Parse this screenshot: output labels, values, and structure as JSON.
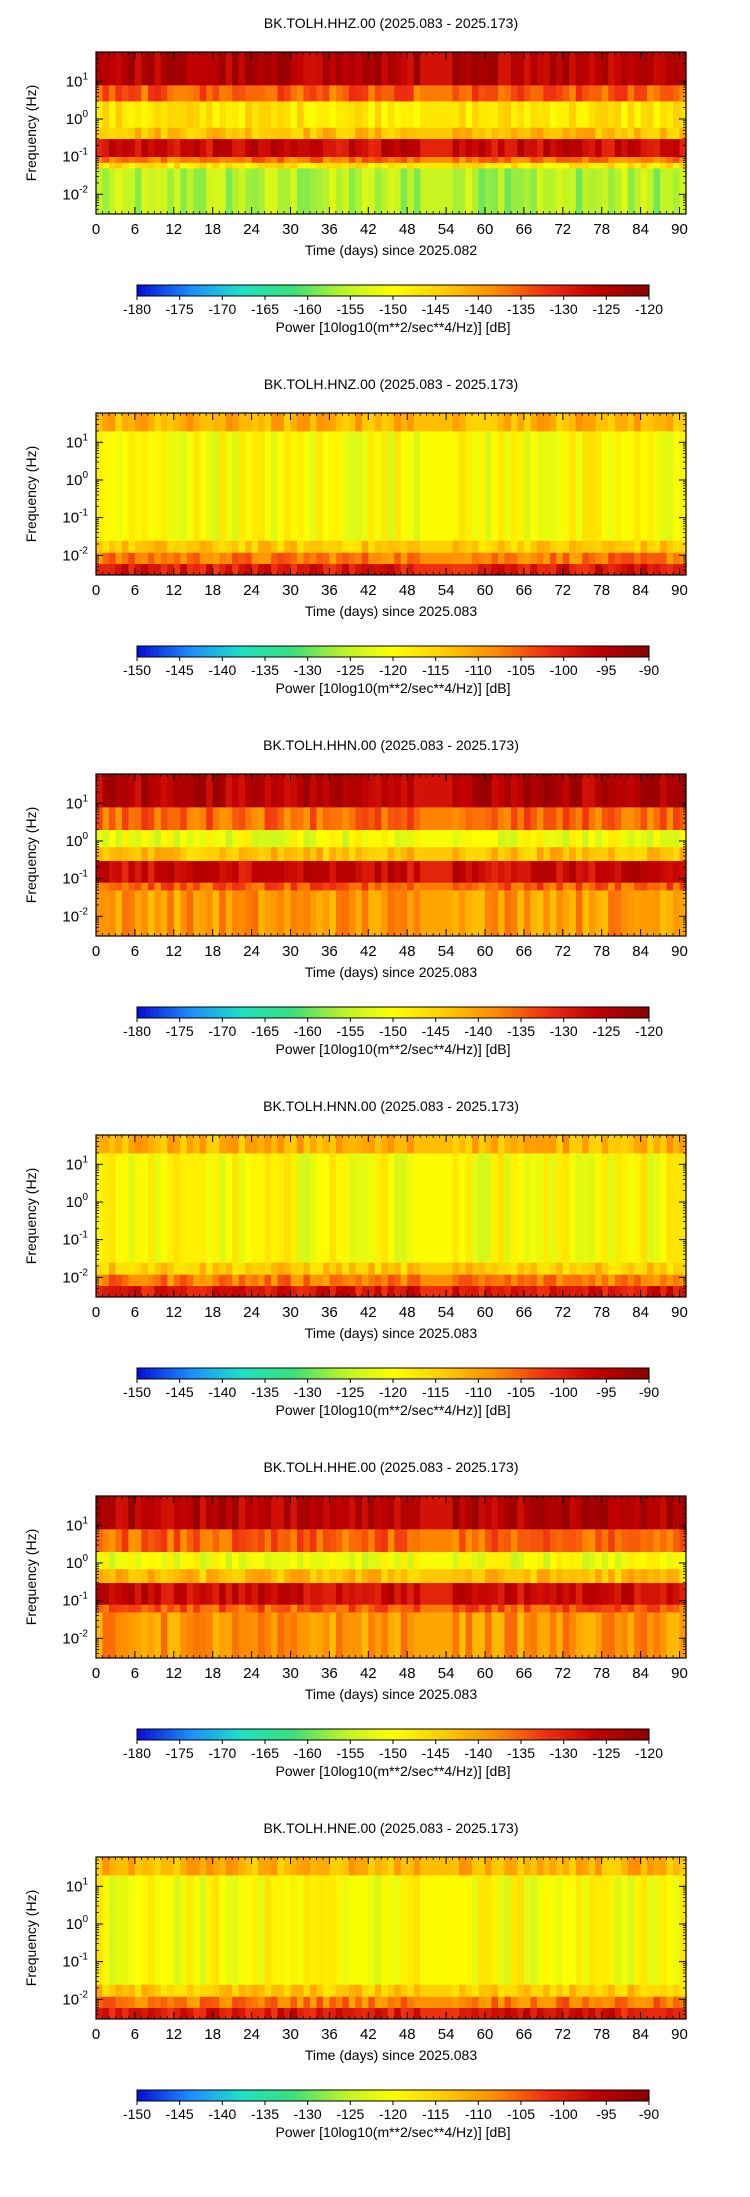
{
  "axis_common": {
    "xlabel": "Time (days) since",
    "ylabel": "Frequency (Hz)",
    "x_ticks": [
      "0",
      "6",
      "12",
      "18",
      "24",
      "30",
      "36",
      "42",
      "48",
      "54",
      "60",
      "66",
      "72",
      "78",
      "84",
      "90"
    ],
    "y_ticks": [
      {
        "base": "10",
        "exp": "1"
      },
      {
        "base": "10",
        "exp": "0"
      },
      {
        "base": "10",
        "exp": "-1"
      },
      {
        "base": "10",
        "exp": "-2"
      }
    ],
    "colorbar_label": "Power [10log10(m**2/sec**4/Hz)] [dB]"
  },
  "colormap": [
    "#0a10d8",
    "#1a8cff",
    "#1de0c8",
    "#37e07a",
    "#b8f22a",
    "#ffff00",
    "#ffcc00",
    "#ff8c00",
    "#f03010",
    "#c00000",
    "#8b0000"
  ],
  "chart_data": [
    {
      "type": "heatmap",
      "title": "BK.TOLH.HHZ.00 (2025.083 - 2025.173)",
      "xlabel_date": "2025.082",
      "xlim": [
        0,
        91
      ],
      "ylim_hz": [
        0.003,
        60
      ],
      "y_scale": "log",
      "colorbar": {
        "ticks": [
          "-180",
          "-175",
          "-170",
          "-165",
          "-160",
          "-155",
          "-150",
          "-145",
          "-140",
          "-135",
          "-130",
          "-125",
          "-120"
        ],
        "range": [
          -180,
          -120
        ]
      },
      "bands": [
        {
          "from_hz": 0.003,
          "to_hz": 0.05,
          "level": 0.4
        },
        {
          "from_hz": 0.05,
          "to_hz": 0.07,
          "level": 0.55
        },
        {
          "from_hz": 0.07,
          "to_hz": 0.1,
          "level": 0.72
        },
        {
          "from_hz": 0.1,
          "to_hz": 0.3,
          "level": 0.88
        },
        {
          "from_hz": 0.3,
          "to_hz": 0.6,
          "level": 0.62
        },
        {
          "from_hz": 0.6,
          "to_hz": 3,
          "level": 0.55
        },
        {
          "from_hz": 3,
          "to_hz": 8,
          "level": 0.75
        },
        {
          "from_hz": 8,
          "to_hz": 60,
          "level": 0.92
        }
      ],
      "quiet_days": [
        50,
        55
      ]
    },
    {
      "type": "heatmap",
      "title": "BK.TOLH.HNZ.00 (2025.083 - 2025.173)",
      "xlabel_date": "2025.083",
      "xlim": [
        0,
        91
      ],
      "ylim_hz": [
        0.003,
        60
      ],
      "y_scale": "log",
      "colorbar": {
        "ticks": [
          "-150",
          "-145",
          "-140",
          "-135",
          "-130",
          "-125",
          "-120",
          "-115",
          "-110",
          "-105",
          "-100",
          "-95",
          "-90"
        ],
        "range": [
          -150,
          -90
        ]
      },
      "bands": [
        {
          "from_hz": 0.003,
          "to_hz": 0.006,
          "level": 0.85
        },
        {
          "from_hz": 0.006,
          "to_hz": 0.012,
          "level": 0.72
        },
        {
          "from_hz": 0.012,
          "to_hz": 0.025,
          "level": 0.6
        },
        {
          "from_hz": 0.025,
          "to_hz": 20,
          "level": 0.5
        },
        {
          "from_hz": 20,
          "to_hz": 60,
          "level": 0.64
        }
      ],
      "quiet_days": [
        50,
        55
      ]
    },
    {
      "type": "heatmap",
      "title": "BK.TOLH.HHN.00 (2025.083 - 2025.173)",
      "xlabel_date": "2025.083",
      "xlim": [
        0,
        91
      ],
      "ylim_hz": [
        0.003,
        60
      ],
      "y_scale": "log",
      "colorbar": {
        "ticks": [
          "-180",
          "-175",
          "-170",
          "-165",
          "-160",
          "-155",
          "-150",
          "-145",
          "-140",
          "-135",
          "-130",
          "-125",
          "-120"
        ],
        "range": [
          -180,
          -120
        ]
      },
      "bands": [
        {
          "from_hz": 0.003,
          "to_hz": 0.05,
          "level": 0.68
        },
        {
          "from_hz": 0.05,
          "to_hz": 0.08,
          "level": 0.75
        },
        {
          "from_hz": 0.08,
          "to_hz": 0.3,
          "level": 0.88
        },
        {
          "from_hz": 0.3,
          "to_hz": 0.7,
          "level": 0.62
        },
        {
          "from_hz": 0.7,
          "to_hz": 2,
          "level": 0.48
        },
        {
          "from_hz": 2,
          "to_hz": 8,
          "level": 0.74
        },
        {
          "from_hz": 8,
          "to_hz": 60,
          "level": 0.92
        }
      ],
      "quiet_days": [
        50,
        55
      ]
    },
    {
      "type": "heatmap",
      "title": "BK.TOLH.HNN.00 (2025.083 - 2025.173)",
      "xlabel_date": "2025.083",
      "xlim": [
        0,
        91
      ],
      "ylim_hz": [
        0.003,
        60
      ],
      "y_scale": "log",
      "colorbar": {
        "ticks": [
          "-150",
          "-145",
          "-140",
          "-135",
          "-130",
          "-125",
          "-120",
          "-115",
          "-110",
          "-105",
          "-100",
          "-95",
          "-90"
        ],
        "range": [
          -150,
          -90
        ]
      },
      "bands": [
        {
          "from_hz": 0.003,
          "to_hz": 0.006,
          "level": 0.85
        },
        {
          "from_hz": 0.006,
          "to_hz": 0.012,
          "level": 0.72
        },
        {
          "from_hz": 0.012,
          "to_hz": 0.025,
          "level": 0.6
        },
        {
          "from_hz": 0.025,
          "to_hz": 20,
          "level": 0.5
        },
        {
          "from_hz": 20,
          "to_hz": 60,
          "level": 0.64
        }
      ],
      "quiet_days": [
        50,
        55
      ]
    },
    {
      "type": "heatmap",
      "title": "BK.TOLH.HHE.00 (2025.083 - 2025.173)",
      "xlabel_date": "2025.083",
      "xlim": [
        0,
        91
      ],
      "ylim_hz": [
        0.003,
        60
      ],
      "y_scale": "log",
      "colorbar": {
        "ticks": [
          "-180",
          "-175",
          "-170",
          "-165",
          "-160",
          "-155",
          "-150",
          "-145",
          "-140",
          "-135",
          "-130",
          "-125",
          "-120"
        ],
        "range": [
          -180,
          -120
        ]
      },
      "bands": [
        {
          "from_hz": 0.003,
          "to_hz": 0.05,
          "level": 0.68
        },
        {
          "from_hz": 0.05,
          "to_hz": 0.08,
          "level": 0.75
        },
        {
          "from_hz": 0.08,
          "to_hz": 0.3,
          "level": 0.88
        },
        {
          "from_hz": 0.3,
          "to_hz": 0.7,
          "level": 0.62
        },
        {
          "from_hz": 0.7,
          "to_hz": 2,
          "level": 0.48
        },
        {
          "from_hz": 2,
          "to_hz": 8,
          "level": 0.74
        },
        {
          "from_hz": 8,
          "to_hz": 60,
          "level": 0.92
        }
      ],
      "quiet_days": [
        50,
        55
      ]
    },
    {
      "type": "heatmap",
      "title": "BK.TOLH.HNE.00 (2025.083 - 2025.173)",
      "xlabel_date": "2025.083",
      "xlim": [
        0,
        91
      ],
      "ylim_hz": [
        0.003,
        60
      ],
      "y_scale": "log",
      "colorbar": {
        "ticks": [
          "-150",
          "-145",
          "-140",
          "-135",
          "-130",
          "-125",
          "-120",
          "-115",
          "-110",
          "-105",
          "-100",
          "-95",
          "-90"
        ],
        "range": [
          -150,
          -90
        ]
      },
      "bands": [
        {
          "from_hz": 0.003,
          "to_hz": 0.006,
          "level": 0.85
        },
        {
          "from_hz": 0.006,
          "to_hz": 0.012,
          "level": 0.72
        },
        {
          "from_hz": 0.012,
          "to_hz": 0.025,
          "level": 0.6
        },
        {
          "from_hz": 0.025,
          "to_hz": 20,
          "level": 0.5
        },
        {
          "from_hz": 20,
          "to_hz": 60,
          "level": 0.64
        }
      ],
      "quiet_days": [
        50,
        55
      ]
    }
  ]
}
